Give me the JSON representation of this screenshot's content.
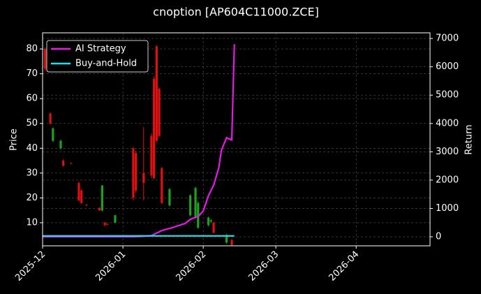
{
  "chart_data": {
    "type": "candlestick",
    "title": "cnoption [AP604C11000.ZCE]",
    "ylabel": "Price",
    "y2label": "Return",
    "up_color": "#1fa01f",
    "down_color": "#e01010",
    "grid": true,
    "legend": "upper left",
    "x": [
      1,
      3,
      4,
      7,
      8,
      11,
      14,
      15,
      17,
      22,
      23,
      24,
      25,
      28,
      35,
      36,
      39,
      42,
      43,
      44,
      45,
      46,
      49,
      57,
      59,
      60,
      64,
      65,
      66,
      71,
      73
    ],
    "open": [
      80,
      54,
      43,
      40,
      35,
      34,
      26,
      23,
      17.2,
      16,
      15,
      10,
      9.5,
      10,
      40,
      38,
      30,
      45,
      68,
      81,
      64,
      32,
      17,
      13,
      12,
      8,
      9,
      10.5,
      10,
      2,
      3
    ],
    "high": [
      80.5,
      54.5,
      48.5,
      43.5,
      35.5,
      34.3,
      26.5,
      23.5,
      17.5,
      16.3,
      25.2,
      10.3,
      9.8,
      13.2,
      40.5,
      39,
      48.5,
      46,
      69,
      81.5,
      64.5,
      32.5,
      24,
      21.5,
      24.5,
      18.5,
      12.5,
      11.5,
      10.5,
      5.5,
      3.5
    ],
    "low": [
      71,
      49.5,
      42.5,
      39.5,
      32.5,
      33.7,
      18.5,
      17.5,
      16.8,
      14.7,
      14.5,
      8.5,
      9,
      9.8,
      19,
      22,
      19,
      28,
      27.5,
      42.5,
      44.5,
      17.5,
      16.5,
      12.5,
      11.5,
      7.5,
      8.5,
      10,
      5.5,
      1.5,
      0.8
    ],
    "close": [
      72,
      50,
      48,
      43,
      33,
      33.8,
      19,
      18,
      17,
      15,
      25,
      9,
      9.2,
      13,
      20,
      23,
      26,
      29,
      28,
      43,
      45,
      18,
      23.5,
      21,
      24,
      18,
      12,
      11,
      6,
      5,
      1
    ],
    "series": [
      {
        "name": "AI Strategy",
        "color": "#e619e6",
        "axis": "y2",
        "x": [
          0,
          35,
          38,
          42,
          46,
          50,
          55,
          57,
          59,
          60,
          62,
          64,
          66,
          68,
          69,
          71,
          72,
          73,
          74
        ],
        "values": [
          0,
          0,
          10,
          40,
          220,
          320,
          470,
          615,
          690,
          715,
          910,
          1450,
          1820,
          2440,
          3050,
          3500,
          3450,
          3420,
          6800
        ]
      },
      {
        "name": "Buy-and-Hold",
        "color": "#22e0e8",
        "axis": "y2",
        "x": [
          0,
          20,
          40,
          60,
          74
        ],
        "values": [
          30,
          30,
          30,
          30,
          30
        ]
      }
    ],
    "xlim": [
      0,
      149.5
    ],
    "xticks": [
      {
        "value": 0,
        "label": "2025-12"
      },
      {
        "value": 31,
        "label": "2026-01"
      },
      {
        "value": 62,
        "label": "2026-02"
      },
      {
        "value": 90,
        "label": "2026-03"
      },
      {
        "value": 121,
        "label": "2026-04"
      }
    ],
    "ylim": [
      0.7,
      86.5
    ],
    "yticks": [
      10,
      20,
      30,
      40,
      50,
      60,
      70,
      80
    ],
    "y2lim": [
      -320,
      7200
    ],
    "y2ticks": [
      0,
      1000,
      2000,
      3000,
      4000,
      5000,
      6000,
      7000
    ]
  }
}
